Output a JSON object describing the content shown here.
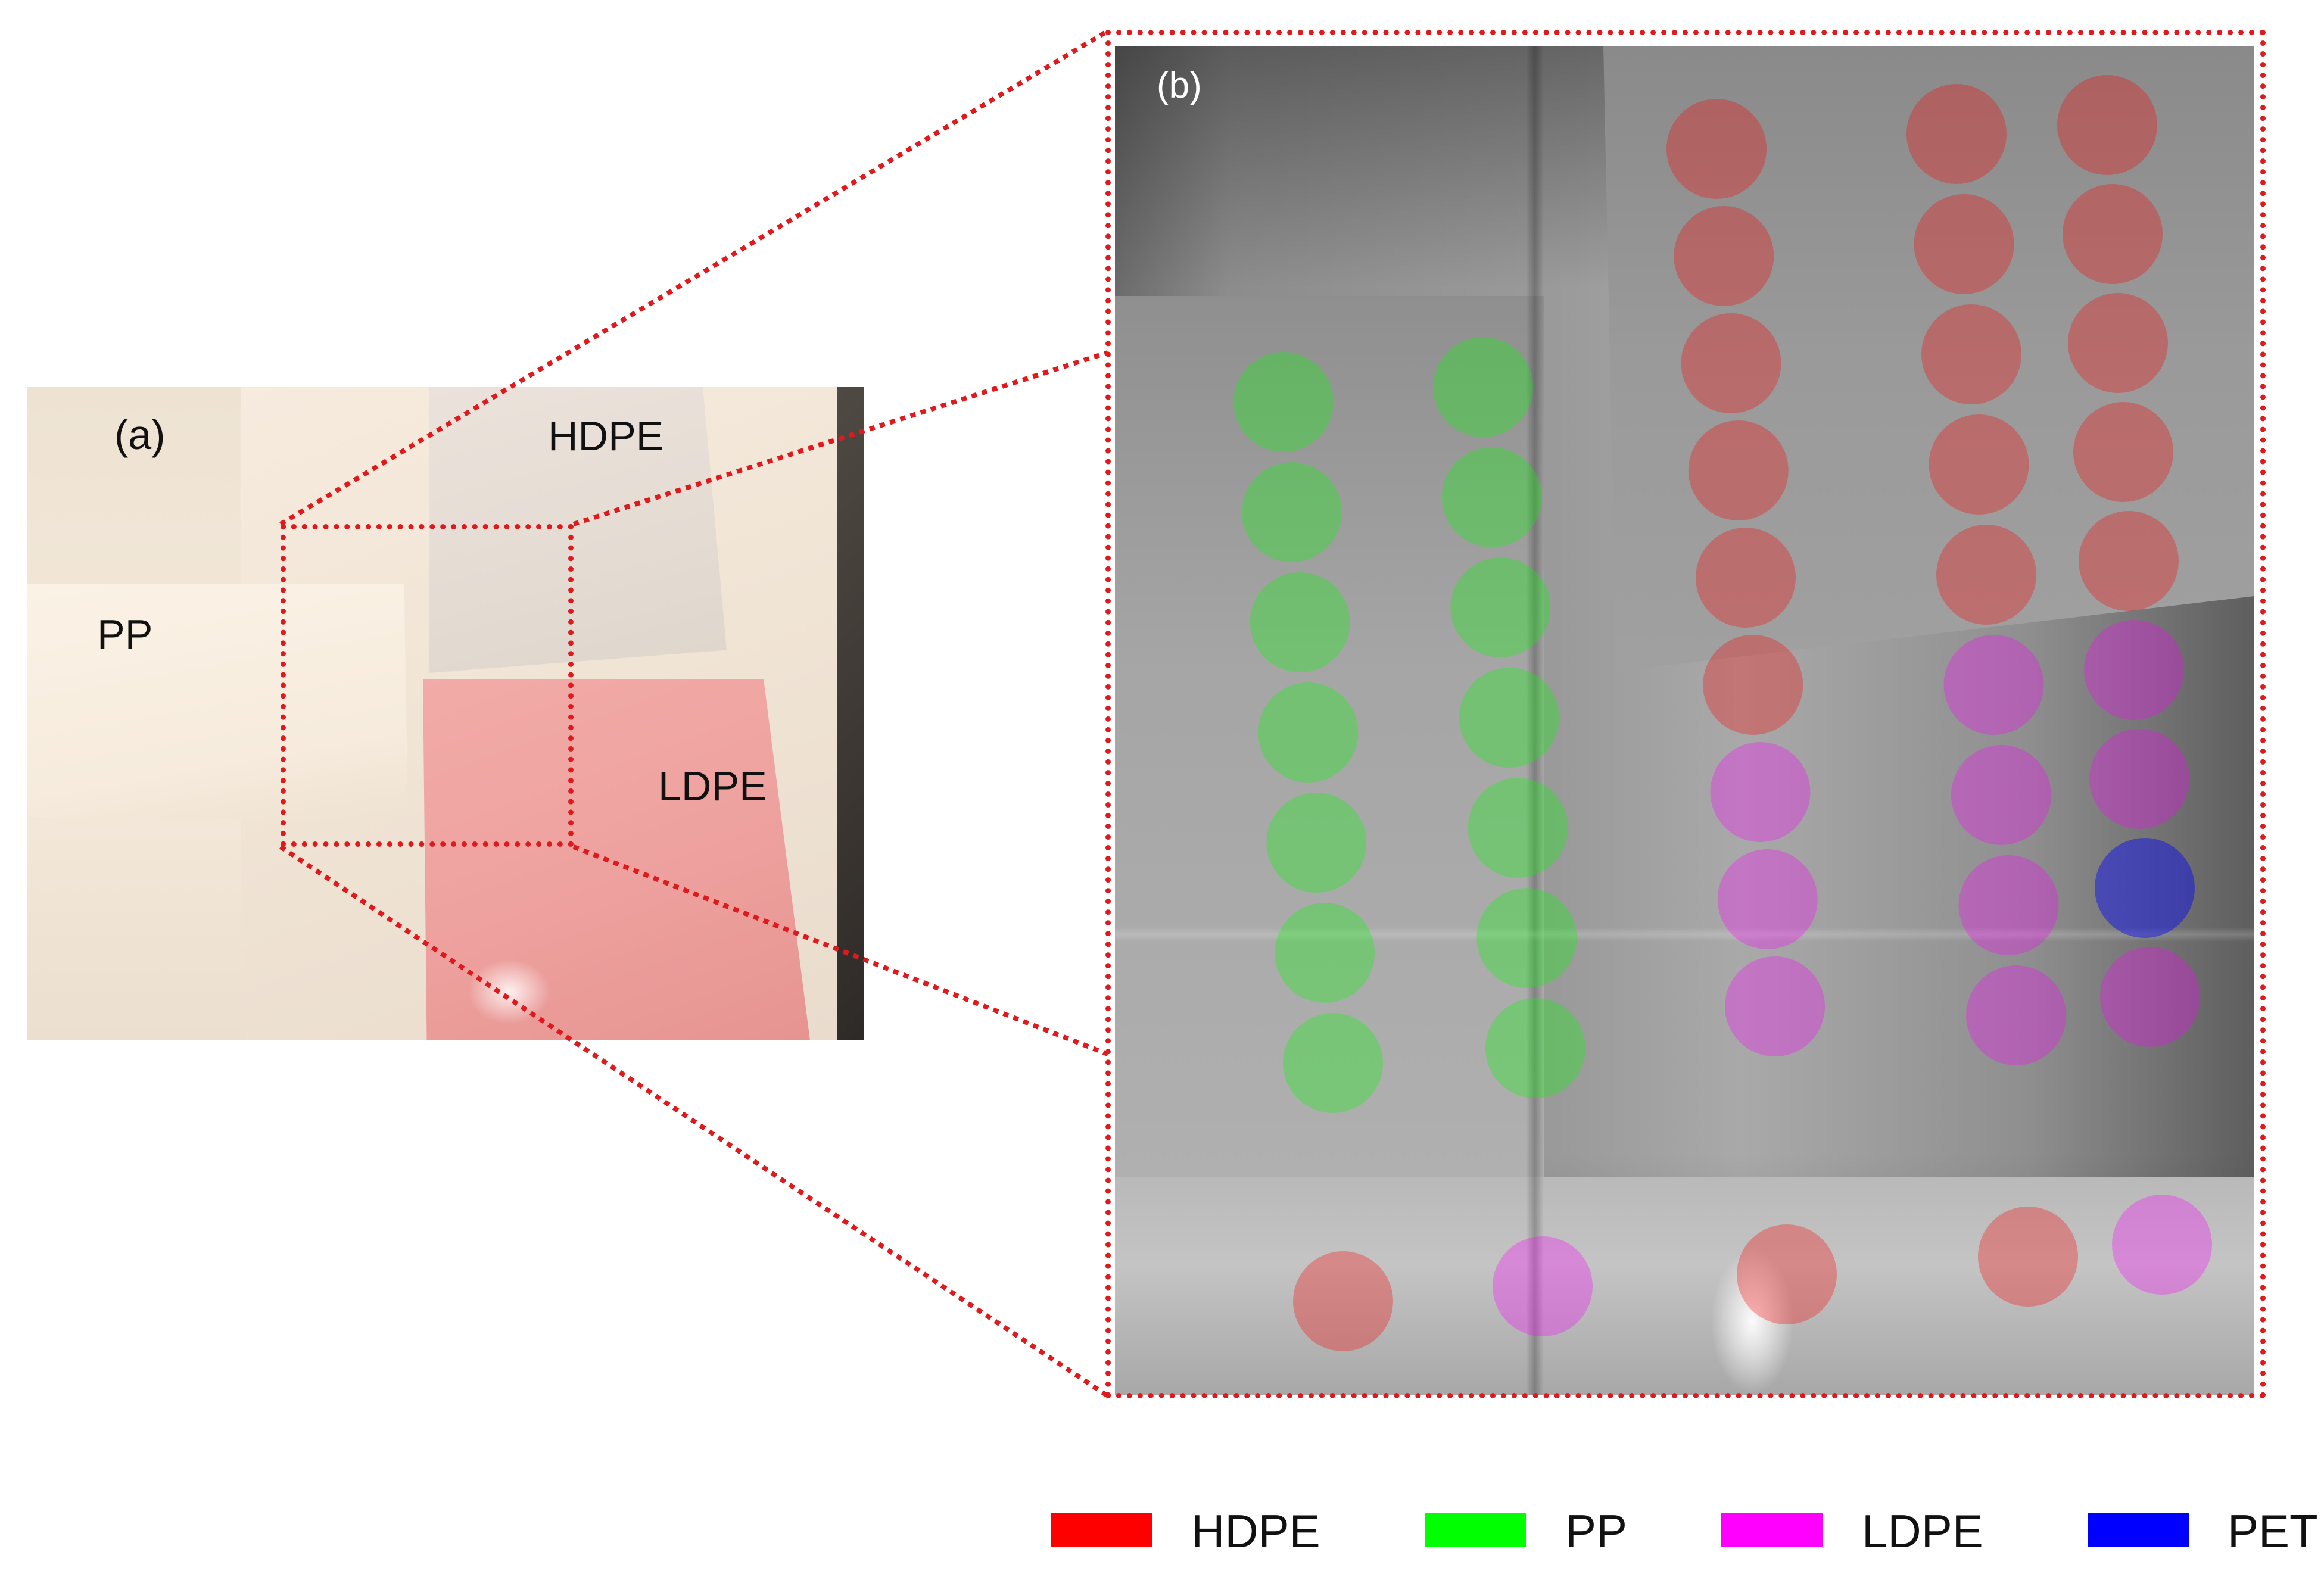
{
  "panel_a": {
    "label": "(a)",
    "sheet_labels": {
      "hdpe": "HDPE",
      "pp": "PP",
      "ldpe": "LDPE"
    }
  },
  "panel_b": {
    "label": "(b)"
  },
  "legend": {
    "items": [
      {
        "label": "HDPE",
        "color": "#ff0000"
      },
      {
        "label": "PP",
        "color": "#00ff00"
      },
      {
        "label": "LDPE",
        "color": "#ff00ff"
      },
      {
        "label": "PET",
        "color": "#0000ff"
      }
    ]
  },
  "classification_grid": {
    "columns": [
      [
        "PP",
        "PP",
        "PP",
        "PP",
        "PP",
        "PP",
        "PP",
        "HDPE"
      ],
      [
        "PP",
        "PP",
        "PP",
        "PP",
        "PP",
        "PP",
        "PP",
        "LDPE"
      ],
      [
        "HDPE",
        "HDPE",
        "HDPE",
        "HDPE",
        "HDPE",
        "HDPE",
        "LDPE",
        "LDPE",
        "LDPE",
        "HDPE"
      ],
      [
        "HDPE",
        "HDPE",
        "HDPE",
        "HDPE",
        "HDPE",
        "LDPE",
        "LDPE",
        "LDPE",
        "LDPE",
        "HDPE"
      ],
      [
        "HDPE",
        "HDPE",
        "HDPE",
        "HDPE",
        "HDPE",
        "LDPE",
        "LDPE",
        "PET",
        "LDPE",
        "LDPE"
      ]
    ]
  }
}
